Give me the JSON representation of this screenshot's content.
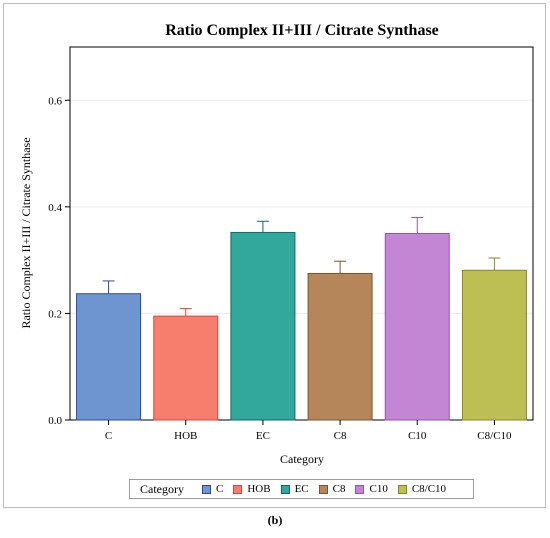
{
  "caption": "(b)",
  "chart_data": {
    "type": "bar",
    "title": "Ratio Complex II+III / Citrate Synthase",
    "xlabel": "Category",
    "ylabel": "Ratio Complex II+III / Citrate Synthase",
    "ylim": [
      0,
      0.7
    ],
    "yticks": [
      "0.0",
      "0.2",
      "0.4",
      "0.6"
    ],
    "categories": [
      "C",
      "HOB",
      "EC",
      "C8",
      "C10",
      "C8/C10"
    ],
    "values": [
      0.237,
      0.195,
      0.352,
      0.275,
      0.35,
      0.281
    ],
    "errors": [
      0.024,
      0.014,
      0.021,
      0.023,
      0.03,
      0.023
    ],
    "colors": [
      "#6f95d1",
      "#f77e6c",
      "#32a79c",
      "#b5865a",
      "#c286d4",
      "#bdbf55"
    ],
    "edge_colors": [
      "#2f45a8",
      "#d9453a",
      "#0e6b62",
      "#7a5530",
      "#9a50b5",
      "#878a22"
    ],
    "grid": true,
    "legend": {
      "title": "Category",
      "placement": "bottom",
      "entries": [
        "C",
        "HOB",
        "EC",
        "C8",
        "C10",
        "C8/C10"
      ]
    }
  }
}
